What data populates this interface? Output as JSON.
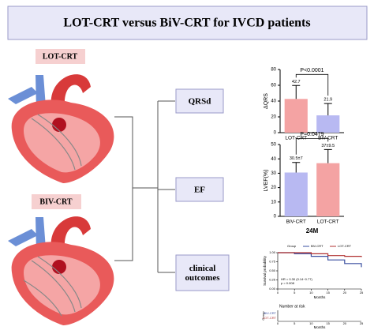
{
  "title": "LOT-CRT versus BiV-CRT for IVCD patients",
  "groups": [
    {
      "label": "LOT-CRT"
    },
    {
      "label": "BIV-CRT"
    }
  ],
  "outcomes": [
    "QRSd",
    "EF",
    "clinical outcomes"
  ],
  "charts": [
    {
      "type": "bar",
      "ylabel": "ΔQRS",
      "categories": [
        "LOT-CRT",
        "BiV-CRT"
      ],
      "values": [
        42.7,
        21.9
      ],
      "errors": [
        17,
        15
      ],
      "colors": [
        "#f4a3a3",
        "#b8b9f2"
      ],
      "ylim": [
        0,
        80
      ],
      "yticks": [
        0,
        20,
        40,
        60,
        80
      ],
      "annotation": "P<0.0001"
    },
    {
      "type": "bar",
      "ylabel": "LVEF(%)",
      "xlabel": "24M",
      "categories": [
        "BiV-CRT",
        "LOT-CRT"
      ],
      "values": [
        30.5,
        37
      ],
      "errors": [
        7,
        9.5
      ],
      "value_labels": [
        "30.5±7",
        "37±9.5"
      ],
      "colors": [
        "#b8b9f2",
        "#f4a3a3"
      ],
      "ylim": [
        0,
        50
      ],
      "yticks": [
        0,
        10,
        20,
        30,
        40,
        50
      ],
      "annotation": "P=0.0479"
    },
    {
      "type": "line",
      "step": true,
      "legend_title": "Group",
      "xlabel": "Months",
      "ylabel": "Survival probability",
      "x": [
        0,
        5,
        10,
        15,
        20,
        25
      ],
      "series": [
        {
          "name": "BiV-CRT",
          "color": "#3a4fa0",
          "values": [
            1,
            0.97,
            0.9,
            0.8,
            0.7,
            0.6
          ]
        },
        {
          "name": "LOT-CRT",
          "color": "#b03030",
          "values": [
            1,
            1,
            0.97,
            0.92,
            0.9,
            0.88
          ]
        }
      ],
      "xlim": [
        0,
        25
      ],
      "xticks": [
        0,
        5,
        10,
        15,
        20,
        25
      ],
      "ylim": [
        0,
        1
      ],
      "yticks": [
        {
          "value": 0,
          "label": "0.00"
        },
        {
          "value": 0.25,
          "label": "0.25"
        },
        {
          "value": 0.5,
          "label": "0.50"
        },
        {
          "value": 0.75,
          "label": "0.75"
        },
        {
          "value": 1,
          "label": "1.00"
        }
      ],
      "annotations": [
        "HR = 0.30 (0.14~0.77)",
        "p = 0.008"
      ],
      "risk_table_title": "Number at risk",
      "risk_table_ylabel": "Group"
    }
  ]
}
